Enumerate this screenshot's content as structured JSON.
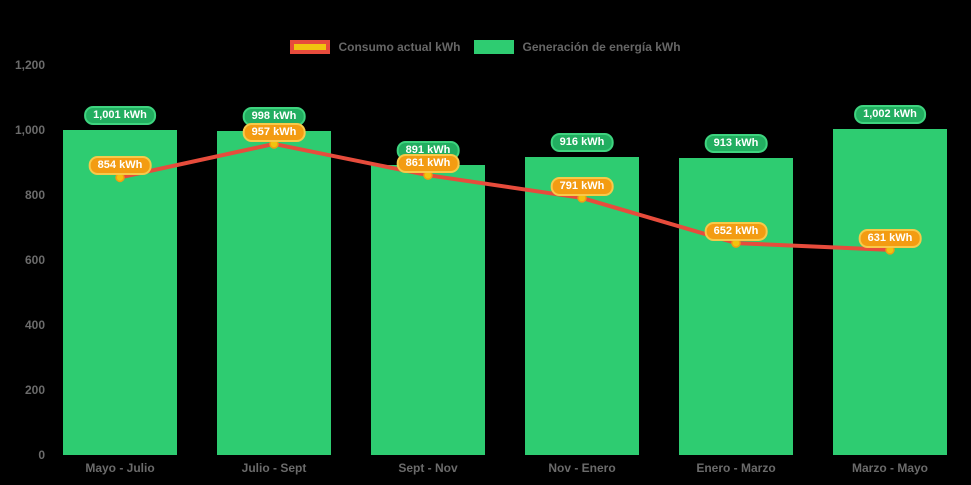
{
  "legend": {
    "items": [
      {
        "label": "Consumo actual kWh"
      },
      {
        "label": "Generación de energía kWh"
      }
    ]
  },
  "colors": {
    "background": "#000000",
    "bar": "#2ECC71",
    "bar_label_fill": "#22AE60",
    "bar_label_border": "#3ED47F",
    "line": "#E74C3C",
    "point_fill": "#F1C40F",
    "point_border": "#F39C12",
    "line_label_fill": "#F39C12",
    "line_label_border": "#F8C94A",
    "axis_text": "#6B6B6B",
    "legend_text": "#666666",
    "consumo_swatch_fill": "#F1C40F",
    "consumo_swatch_border": "#E74C3C",
    "generacion_swatch": "#2ECC71"
  },
  "chart_data": {
    "type": "bar",
    "title": "",
    "xlabel": "",
    "ylabel": "",
    "categories": [
      "Mayo - Julio",
      "Julio - Sept",
      "Sept - Nov",
      "Nov - Enero",
      "Enero - Marzo",
      "Marzo - Mayo"
    ],
    "series": [
      {
        "name": "Generación de energía kWh",
        "type": "bar",
        "values": [
          1001,
          998,
          891,
          916,
          913,
          1002
        ],
        "labels": [
          "1,001 kWh",
          "998 kWh",
          "891 kWh",
          "916 kWh",
          "913 kWh",
          "1,002 kWh"
        ]
      },
      {
        "name": "Consumo actual kWh",
        "type": "line",
        "values": [
          854,
          957,
          861,
          791,
          652,
          631
        ],
        "labels": [
          "854 kWh",
          "957 kWh",
          "861 kWh",
          "791 kWh",
          "652 kWh",
          "631 kWh"
        ]
      }
    ],
    "ylim": [
      0,
      1200
    ],
    "yticks": [
      {
        "value": 0,
        "label": "0"
      },
      {
        "value": 200,
        "label": "200"
      },
      {
        "value": 400,
        "label": "400"
      },
      {
        "value": 600,
        "label": "600"
      },
      {
        "value": 800,
        "label": "800"
      },
      {
        "value": 1000,
        "label": "1,000"
      },
      {
        "value": 1200,
        "label": "1,200"
      }
    ],
    "grid": false,
    "legend_position": "top"
  }
}
